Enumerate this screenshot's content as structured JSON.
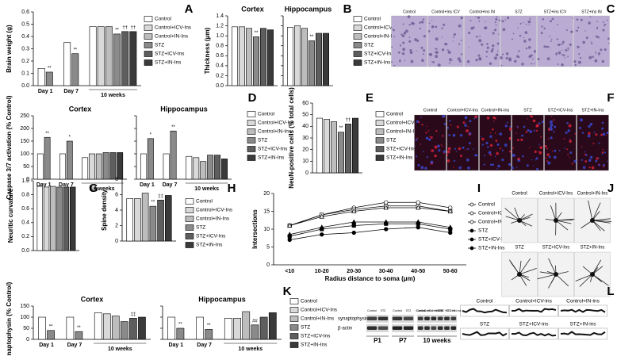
{
  "chart_data": [
    {
      "type": "bar",
      "letter": "A",
      "ylabel": "Brain weight (g)",
      "ylim": [
        0,
        0.6
      ],
      "yticks": [
        {
          "value": 0,
          "label": "0.0"
        },
        {
          "value": 0.1,
          "label": "0.1"
        },
        {
          "value": 0.2,
          "label": "0.2"
        },
        {
          "value": 0.3,
          "label": "0.3"
        },
        {
          "value": 0.4,
          "label": "0.4"
        },
        {
          "value": 0.5,
          "label": "0.5"
        },
        {
          "value": 0.6,
          "label": "0.6"
        }
      ],
      "series": [
        {
          "name": "Control",
          "color": "#ffffff"
        },
        {
          "name": "Control+ICV-Ins",
          "color": "#d9d9d9"
        },
        {
          "name": "Control+IN-Ins",
          "color": "#bdbdbd"
        },
        {
          "name": "STZ",
          "color": "#8a8a8a"
        },
        {
          "name": "STZ+ICV-Ins",
          "color": "#5e5e5e"
        },
        {
          "name": "STZ+IN-Ins",
          "color": "#3a3a3a"
        }
      ],
      "subplots": [
        {
          "groups": [
            "Day 1",
            "Day 7",
            "10 weeks"
          ],
          "values": [
            [
              0.14,
              0.35,
              0.48
            ],
            [
              null,
              null,
              0.48
            ],
            [
              null,
              null,
              0.48
            ],
            [
              0.11,
              0.26,
              0.42
            ],
            [
              null,
              null,
              0.44
            ],
            [
              null,
              null,
              0.44
            ]
          ],
          "significance": [
            [
              null,
              null,
              null
            ],
            [
              null,
              null,
              null
            ],
            [
              null,
              null,
              null
            ],
            [
              "**",
              "**",
              "**"
            ],
            [
              null,
              null,
              "††"
            ],
            [
              null,
              null,
              "††"
            ]
          ]
        }
      ]
    },
    {
      "type": "bar",
      "letter": "B",
      "ylabel": "Thickness (μm)",
      "ylim": [
        0,
        1.4
      ],
      "yticks": [
        {
          "value": 0,
          "label": "0.0"
        },
        {
          "value": 0.2,
          "label": "0.2"
        },
        {
          "value": 0.4,
          "label": "0.4"
        },
        {
          "value": 0.6,
          "label": "0.6"
        },
        {
          "value": 0.8,
          "label": "0.8"
        },
        {
          "value": 1.0,
          "label": "1.0"
        },
        {
          "value": 1.2,
          "label": "1.2"
        },
        {
          "value": 1.4,
          "label": "1.4"
        }
      ],
      "series": [
        {
          "name": "Control",
          "color": "#ffffff"
        },
        {
          "name": "Control+ICV-Ins",
          "color": "#d9d9d9"
        },
        {
          "name": "Control+IN-Ins",
          "color": "#bdbdbd"
        },
        {
          "name": "STZ",
          "color": "#8a8a8a"
        },
        {
          "name": "STZ+ICV-Ins",
          "color": "#5e5e5e"
        },
        {
          "name": "STZ+IN-Ins",
          "color": "#3a3a3a"
        }
      ],
      "subplots": [
        {
          "title": "Cortex",
          "groups": [
            null
          ],
          "values": [
            [
              1.18
            ],
            [
              1.18
            ],
            [
              1.15
            ],
            [
              0.98
            ],
            [
              1.15
            ],
            [
              1.12
            ]
          ],
          "significance": [
            [
              null
            ],
            [
              null
            ],
            [
              null
            ],
            [
              "**"
            ],
            [
              null
            ],
            [
              null
            ]
          ]
        },
        {
          "title": "Hippocampus",
          "groups": [
            null
          ],
          "values": [
            [
              1.17
            ],
            [
              1.2
            ],
            [
              1.15
            ],
            [
              0.9
            ],
            [
              1.05
            ],
            [
              1.05
            ]
          ],
          "significance": [
            [
              null
            ],
            [
              null
            ],
            [
              null
            ],
            [
              "**"
            ],
            [
              null
            ],
            [
              null
            ]
          ]
        }
      ]
    },
    {
      "type": "bar",
      "letter": "D",
      "ylabel": "Caspase 3/7 activation (% Control)",
      "ylim": [
        0,
        250
      ],
      "yticks": [
        0,
        50,
        100,
        150,
        200,
        250
      ],
      "series": [
        {
          "name": "Control",
          "color": "#ffffff"
        },
        {
          "name": "Control+ICV-Ins",
          "color": "#d9d9d9"
        },
        {
          "name": "Control+IN-Ins",
          "color": "#bdbdbd"
        },
        {
          "name": "STZ",
          "color": "#8a8a8a"
        },
        {
          "name": "STZ+ICV-Ins",
          "color": "#5e5e5e"
        },
        {
          "name": "STZ+IN-Ins",
          "color": "#3a3a3a"
        }
      ],
      "subplots": [
        {
          "title": "Cortex",
          "groups": [
            "Day 1",
            "Day 7",
            "10 weeks"
          ],
          "values": [
            [
              100,
              100,
              85
            ],
            [
              null,
              null,
              100
            ],
            [
              null,
              null,
              100
            ],
            [
              165,
              150,
              105
            ],
            [
              null,
              null,
              105
            ],
            [
              null,
              null,
              105
            ]
          ],
          "significance": [
            [
              null,
              null,
              null
            ],
            [
              null,
              null,
              null
            ],
            [
              null,
              null,
              null
            ],
            [
              "**",
              "*",
              null
            ],
            [
              null,
              null,
              null
            ],
            [
              null,
              null,
              null
            ]
          ]
        },
        {
          "title": "Hippocampus",
          "groups": [
            "Day 1",
            "Day 7",
            "10 weeks"
          ],
          "values": [
            [
              100,
              100,
              90
            ],
            [
              null,
              null,
              85
            ],
            [
              null,
              null,
              70
            ],
            [
              160,
              190,
              95
            ],
            [
              null,
              null,
              95
            ],
            [
              null,
              null,
              80
            ]
          ],
          "significance": [
            [
              null,
              null,
              null
            ],
            [
              null,
              null,
              null
            ],
            [
              null,
              null,
              null
            ],
            [
              "*",
              "**",
              null
            ],
            [
              null,
              null,
              null
            ],
            [
              null,
              null,
              null
            ]
          ]
        }
      ]
    },
    {
      "type": "bar",
      "letter": "E",
      "ylabel": "NeuN-positive cells (% total cells)",
      "ylim": [
        0,
        60
      ],
      "yticks": [
        0,
        10,
        20,
        30,
        40,
        50,
        60
      ],
      "series": [
        {
          "name": "Control",
          "color": "#ffffff"
        },
        {
          "name": "Control+ICV-Ins",
          "color": "#d9d9d9"
        },
        {
          "name": "Control+IN-Ins",
          "color": "#bdbdbd"
        },
        {
          "name": "STZ",
          "color": "#8a8a8a"
        },
        {
          "name": "STZ+ICV-Ins",
          "color": "#5e5e5e"
        },
        {
          "name": "STZ+IN-Ins",
          "color": "#3a3a3a"
        }
      ],
      "subplots": [
        {
          "groups": [
            null
          ],
          "values": [
            [
              47
            ],
            [
              46
            ],
            [
              44
            ],
            [
              35
            ],
            [
              42
            ],
            [
              47
            ]
          ],
          "significance": [
            [
              null
            ],
            [
              null
            ],
            [
              null
            ],
            [
              "**"
            ],
            [
              "††"
            ],
            [
              null
            ]
          ]
        }
      ]
    },
    {
      "type": "bar",
      "letter": "G",
      "ylabel": "Neuritic curvature",
      "ylim": [
        0,
        1.0
      ],
      "yticks": [
        {
          "value": 0,
          "label": "0.0"
        },
        {
          "value": 0.2,
          "label": "0.2"
        },
        {
          "value": 0.4,
          "label": "0.4"
        },
        {
          "value": 0.6,
          "label": "0.6"
        },
        {
          "value": 0.8,
          "label": "0.8"
        },
        {
          "value": 1.0,
          "label": "1.0"
        }
      ],
      "series": [
        {
          "color": "#ffffff"
        },
        {
          "color": "#d9d9d9"
        },
        {
          "color": "#bdbdbd"
        },
        {
          "color": "#8a8a8a"
        },
        {
          "color": "#5e5e5e"
        },
        {
          "color": "#3a3a3a"
        }
      ],
      "subplots": [
        {
          "groups": [
            null
          ],
          "values": [
            [
              0.92
            ],
            [
              0.91
            ],
            [
              0.92
            ],
            [
              0.91
            ],
            [
              0.91
            ],
            [
              0.91
            ]
          ],
          "significance": [
            [
              null
            ],
            [
              null
            ],
            [
              null
            ],
            [
              null
            ],
            [
              null
            ],
            [
              null
            ]
          ]
        }
      ]
    },
    {
      "type": "bar",
      "letter": "H",
      "ylabel": "Spine density",
      "ylim": [
        0,
        8
      ],
      "yticks": [
        0,
        2,
        4,
        6,
        8
      ],
      "series": [
        {
          "name": "Control",
          "color": "#ffffff"
        },
        {
          "name": "Control+ICV-Ins",
          "color": "#d9d9d9"
        },
        {
          "name": "Control+IN-Ins",
          "color": "#bdbdbd"
        },
        {
          "name": "STZ",
          "color": "#8a8a8a"
        },
        {
          "name": "STZ+ICV-Ins",
          "color": "#5e5e5e"
        },
        {
          "name": "STZ+IN-Ins",
          "color": "#3a3a3a"
        }
      ],
      "subplots": [
        {
          "groups": [
            null
          ],
          "values": [
            [
              5.5
            ],
            [
              5.5
            ],
            [
              6.2
            ],
            [
              4.5
            ],
            [
              5.3
            ],
            [
              5.9
            ]
          ],
          "significance": [
            [
              null
            ],
            [
              null
            ],
            [
              null
            ],
            [
              "**"
            ],
            [
              "‡‡"
            ],
            [
              null
            ]
          ]
        }
      ]
    },
    {
      "type": "line",
      "letter": "I",
      "ylabel": "Intersections",
      "xlabel": "Radius distance to soma (μm)",
      "categories": [
        "<10",
        "10-20",
        "20-30",
        "30-40",
        "40-50",
        "50-60"
      ],
      "ylim": [
        0,
        20
      ],
      "yticks": [
        0,
        5,
        10,
        15,
        20
      ],
      "series": [
        {
          "name": "Control",
          "color": "#ffffff",
          "marker": "circle",
          "values": [
            11,
            14,
            16,
            17.5,
            17.5,
            16
          ]
        },
        {
          "name": "Control+ICV-I",
          "color": "#ffffff",
          "marker": "square",
          "values": [
            11,
            14,
            15.5,
            16.5,
            16.5,
            15
          ]
        },
        {
          "name": "Control+IN-Ins",
          "color": "#ffffff",
          "marker": "triangle",
          "values": [
            11,
            13.5,
            15,
            16,
            16,
            15
          ]
        },
        {
          "name": "STZ",
          "color": "#000000",
          "marker": "circle",
          "values": [
            7,
            8.5,
            9,
            10,
            10.5,
            9
          ]
        },
        {
          "name": "STZ+ICV-In",
          "color": "#000000",
          "marker": "square",
          "values": [
            8,
            10,
            11,
            11.5,
            11.5,
            10
          ]
        },
        {
          "name": "STZ+IN-Ins",
          "color": "#000000",
          "marker": "triangle",
          "values": [
            8.5,
            10.5,
            12,
            12,
            12,
            10.5
          ]
        }
      ]
    },
    {
      "type": "bar",
      "letter": "K",
      "ylabel": "Synaptophysin (% Control)",
      "ylim": [
        0,
        150
      ],
      "yticks": [
        0,
        50,
        100,
        150
      ],
      "series": [
        {
          "name": "Control",
          "color": "#ffffff"
        },
        {
          "name": "Control+ICV-Ins",
          "color": "#d9d9d9"
        },
        {
          "name": "Control+IN-Ins",
          "color": "#bdbdbd"
        },
        {
          "name": "STZ",
          "color": "#8a8a8a"
        },
        {
          "name": "STZ+ICV-Ins",
          "color": "#5e5e5e"
        },
        {
          "name": "STZ+IN-Ins",
          "color": "#3a3a3a"
        }
      ],
      "subplots": [
        {
          "title": "Cortex",
          "groups": [
            "Day 1",
            "Day 7",
            "10 weeks"
          ],
          "values": [
            [
              100,
              100,
              120
            ],
            [
              null,
              null,
              115
            ],
            [
              null,
              null,
              105
            ],
            [
              40,
              35,
              80
            ],
            [
              null,
              null,
              95
            ],
            [
              null,
              null,
              100
            ]
          ],
          "significance": [
            [
              null,
              null,
              null
            ],
            [
              null,
              null,
              null
            ],
            [
              null,
              null,
              null
            ],
            [
              "**",
              "**",
              null
            ],
            [
              null,
              null,
              "‡‡"
            ],
            [
              null,
              null,
              null
            ]
          ]
        },
        {
          "title": "Hippocampus",
          "groups": [
            "Day 1",
            "Day 7",
            "10 weeks"
          ],
          "values": [
            [
              100,
              100,
              95
            ],
            [
              null,
              null,
              95
            ],
            [
              null,
              null,
              125
            ],
            [
              50,
              45,
              65
            ],
            [
              null,
              null,
              100
            ],
            [
              null,
              null,
              120
            ]
          ],
          "significance": [
            [
              null,
              null,
              null
            ],
            [
              null,
              null,
              null
            ],
            [
              null,
              null,
              null
            ],
            [
              "**",
              "**",
              "##"
            ],
            [
              null,
              null,
              null
            ],
            [
              null,
              null,
              null
            ]
          ]
        }
      ]
    }
  ],
  "image_panels": [
    {
      "letter": "C",
      "labels": [
        "Control",
        "Control+Ins ICV",
        "Control+Ins IN",
        "STZ",
        "STZ+Ins ICV",
        "STZ+Ins IN"
      ]
    },
    {
      "letter": "F",
      "labels": [
        "Control",
        "Control+ICV-Ins",
        "Control+IN-Ins",
        "STZ",
        "STZ+ICV-Ins",
        "STZ+IN-Ins"
      ]
    },
    {
      "letter": "J",
      "labels": [
        "Control",
        "Control+ICV-Ins",
        "Control+IN-Ins",
        "STZ",
        "STZ+ICV-Ins",
        "STZ+IN-Ins"
      ]
    },
    {
      "letter": "L",
      "labels": [
        "Control",
        "Control+ICV-ins",
        "Control+IN-ins",
        "STZ",
        "STZ+ICV-ins",
        "STZ+IN-ins"
      ]
    }
  ],
  "blot": {
    "bands": [
      "synaptophysin",
      "β-actin"
    ],
    "groups": [
      "P1",
      "P7",
      "10 weeks"
    ],
    "lanes": [
      [
        "Control",
        "STZ"
      ],
      [
        "Control",
        "STZ"
      ],
      [
        "Control",
        "Control +ICV-ins",
        "Control +IN-ins",
        "STZ",
        "STZ +ICV-ins",
        "STZ +IN-ins"
      ]
    ]
  }
}
